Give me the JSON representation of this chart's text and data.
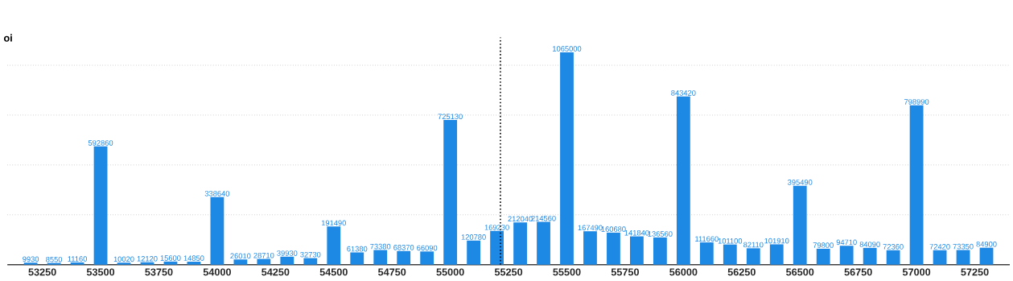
{
  "chart_data": {
    "type": "bar",
    "ylabel": "oi",
    "x": [
      53200,
      53300,
      53400,
      53500,
      53600,
      53700,
      53800,
      53900,
      54000,
      54100,
      54200,
      54300,
      54400,
      54500,
      54600,
      54700,
      54800,
      54900,
      55000,
      55100,
      55200,
      55300,
      55400,
      55500,
      55600,
      55700,
      55800,
      55900,
      56000,
      56100,
      56200,
      56300,
      56400,
      56500,
      56600,
      56700,
      56800,
      56900,
      57000,
      57100,
      57200,
      57300
    ],
    "values": [
      9930,
      8550,
      11160,
      592860,
      10020,
      12120,
      15600,
      14850,
      338640,
      26010,
      28710,
      39930,
      32730,
      191490,
      61380,
      73380,
      68370,
      66090,
      725130,
      120780,
      169230,
      212040,
      214560,
      1065000,
      167490,
      160680,
      141840,
      136560,
      843420,
      111660,
      101100,
      82110,
      101910,
      395490,
      79800,
      94710,
      84090,
      72360,
      798990,
      72420,
      73350,
      84900
    ],
    "color": "#1e88e5",
    "data_labels": true,
    "xlim": [
      53100,
      57400
    ],
    "xticks": [
      53250,
      53500,
      53750,
      54000,
      54250,
      54500,
      54750,
      55000,
      55250,
      55500,
      55750,
      56000,
      56250,
      56500,
      56750,
      57000,
      57250
    ],
    "yticks": [
      {
        "value": 250000,
        "label": null
      },
      {
        "value": 500000,
        "label": null
      },
      {
        "value": 750000,
        "label": null
      },
      {
        "value": 1000000,
        "label": null
      }
    ],
    "tick_labels": "x",
    "grid": "y",
    "ref_lines": [
      {
        "axis": "x",
        "value": 55215,
        "line_style": "dotted",
        "color": "#000000"
      }
    ]
  }
}
